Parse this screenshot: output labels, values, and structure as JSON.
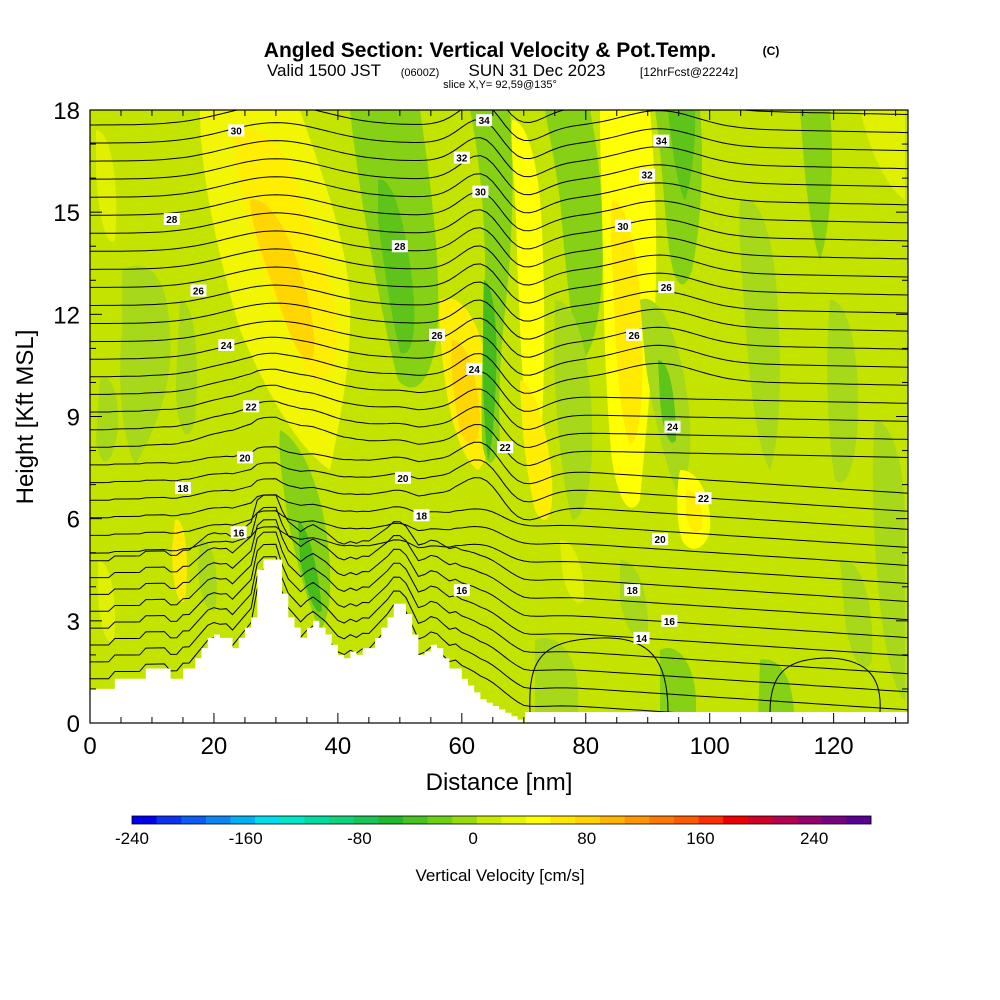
{
  "header": {
    "title_main": "Angled Section: Vertical Velocity & Pot.Temp.",
    "title_tag": "(C)",
    "valid_a": "Valid 1500 JST",
    "valid_b": "(0600Z)",
    "valid_c": "SUN 31 Dec 2023",
    "valid_d": "[12hrFcst@2224z]",
    "slice": "slice X,Y= 92,59@135°"
  },
  "chart_data": {
    "type": "heatmap",
    "xlabel": "Distance [nm]",
    "ylabel": "Height [Kft MSL]",
    "xlim": [
      0,
      132
    ],
    "ylim": [
      0,
      18
    ],
    "x_ticks": [
      "0",
      "20",
      "40",
      "60",
      "80",
      "100",
      "120"
    ],
    "x_tick_values": [
      0,
      20,
      40,
      60,
      80,
      100,
      120
    ],
    "y_ticks": [
      "0",
      "3",
      "6",
      "9",
      "12",
      "15",
      "18"
    ],
    "y_tick_values": [
      0,
      3,
      6,
      9,
      12,
      15,
      18
    ],
    "colorbar": {
      "label": "Vertical Velocity [cm/s]",
      "range": [
        -240,
        280
      ],
      "step": 20,
      "tick_labels": [
        "-240",
        "-160",
        "-80",
        "0",
        "80",
        "160",
        "240"
      ],
      "tick_values": [
        -240,
        -160,
        -80,
        0,
        80,
        160,
        240
      ],
      "colors": [
        "#0000ee",
        "#0a32f2",
        "#0b5cf2",
        "#0a86f2",
        "#00b0f0",
        "#00dced",
        "#00e6c8",
        "#00dca0",
        "#10d27a",
        "#18c456",
        "#20b82c",
        "#46c31e",
        "#6ed014",
        "#96dc0a",
        "#c8eb00",
        "#e6f500",
        "#ffff00",
        "#ffe600",
        "#ffd200",
        "#ffb400",
        "#ff9600",
        "#ff7800",
        "#ff5a00",
        "#ff2d00",
        "#ee0000",
        "#d20028",
        "#b40050",
        "#96006e",
        "#780082",
        "#5a0096"
      ]
    },
    "isentrope_labels": [
      {
        "text": "30",
        "x": 23.6,
        "y": 17.4
      },
      {
        "text": "34",
        "x": 63.6,
        "y": 17.7
      },
      {
        "text": "34",
        "x": 92.2,
        "y": 17.1
      },
      {
        "text": "32",
        "x": 60.0,
        "y": 16.6
      },
      {
        "text": "32",
        "x": 89.9,
        "y": 16.1
      },
      {
        "text": "30",
        "x": 63.0,
        "y": 15.6
      },
      {
        "text": "30",
        "x": 86.0,
        "y": 14.6
      },
      {
        "text": "28",
        "x": 13.2,
        "y": 14.8
      },
      {
        "text": "28",
        "x": 50.0,
        "y": 14.0
      },
      {
        "text": "26",
        "x": 17.5,
        "y": 12.7
      },
      {
        "text": "26",
        "x": 93.0,
        "y": 12.8
      },
      {
        "text": "26",
        "x": 56.0,
        "y": 11.4
      },
      {
        "text": "26",
        "x": 87.8,
        "y": 11.4
      },
      {
        "text": "24",
        "x": 22.0,
        "y": 11.1
      },
      {
        "text": "24",
        "x": 62.0,
        "y": 10.4
      },
      {
        "text": "24",
        "x": 94.0,
        "y": 8.7
      },
      {
        "text": "22",
        "x": 26.0,
        "y": 9.3
      },
      {
        "text": "22",
        "x": 67.0,
        "y": 8.1
      },
      {
        "text": "22",
        "x": 99.0,
        "y": 6.6
      },
      {
        "text": "20",
        "x": 25.0,
        "y": 7.8
      },
      {
        "text": "20",
        "x": 50.5,
        "y": 7.2
      },
      {
        "text": "20",
        "x": 92.0,
        "y": 5.4
      },
      {
        "text": "18",
        "x": 15.0,
        "y": 6.9
      },
      {
        "text": "18",
        "x": 53.5,
        "y": 6.1
      },
      {
        "text": "18",
        "x": 87.5,
        "y": 3.9
      },
      {
        "text": "16",
        "x": 24.0,
        "y": 5.6
      },
      {
        "text": "16",
        "x": 60.0,
        "y": 3.9
      },
      {
        "text": "16",
        "x": 93.5,
        "y": 3.0
      },
      {
        "text": "14",
        "x": 89.0,
        "y": 2.5
      }
    ],
    "terrain_profile": {
      "x": [
        0,
        4,
        4,
        9,
        9,
        13,
        13,
        15,
        15,
        17,
        17,
        18,
        18,
        19,
        19,
        20,
        20,
        21,
        21,
        23,
        23,
        24,
        24,
        25,
        25,
        26,
        26,
        27,
        27,
        28,
        28,
        31,
        31,
        32,
        32,
        33,
        33,
        34,
        34,
        35,
        35,
        36,
        36,
        37,
        37,
        38,
        38,
        39,
        39,
        40,
        40,
        41,
        41,
        42,
        42,
        43,
        43,
        44,
        44,
        46,
        46,
        47,
        47,
        48,
        48,
        49,
        49,
        50,
        50,
        51,
        51,
        52,
        52,
        53,
        53,
        54,
        54,
        55,
        55,
        56,
        56,
        57,
        57,
        58,
        58,
        60,
        60,
        61,
        61,
        62,
        62,
        63,
        63,
        64,
        64,
        65,
        65,
        66,
        66,
        67,
        67,
        68,
        68,
        69,
        69,
        70,
        70,
        71,
        71,
        132
      ],
      "h": [
        1.0,
        1.0,
        1.3,
        1.3,
        1.6,
        1.6,
        1.3,
        1.3,
        1.6,
        1.6,
        1.9,
        1.9,
        2.2,
        2.2,
        2.5,
        2.5,
        2.6,
        2.6,
        2.5,
        2.5,
        2.2,
        2.2,
        2.5,
        2.5,
        2.8,
        2.8,
        3.1,
        3.1,
        4.5,
        4.5,
        4.8,
        4.8,
        3.8,
        3.8,
        3.1,
        3.1,
        2.8,
        2.8,
        2.5,
        2.5,
        2.8,
        2.8,
        3.0,
        3.0,
        2.8,
        2.8,
        2.6,
        2.6,
        2.3,
        2.3,
        2.0,
        2.0,
        1.9,
        1.9,
        2.1,
        2.1,
        2.0,
        2.0,
        2.2,
        2.2,
        2.5,
        2.5,
        2.8,
        2.8,
        3.1,
        3.1,
        3.5,
        3.5,
        3.5,
        3.5,
        3.2,
        3.2,
        2.6,
        2.6,
        2.0,
        2.0,
        2.1,
        2.1,
        2.3,
        2.3,
        2.2,
        2.2,
        1.9,
        1.9,
        1.6,
        1.6,
        1.3,
        1.3,
        1.1,
        1.1,
        0.9,
        0.9,
        0.7,
        0.7,
        0.6,
        0.6,
        0.5,
        0.5,
        0.4,
        0.4,
        0.3,
        0.3,
        0.2,
        0.2,
        0.1,
        0.1,
        0,
        0,
        0,
        0
      ]
    }
  }
}
